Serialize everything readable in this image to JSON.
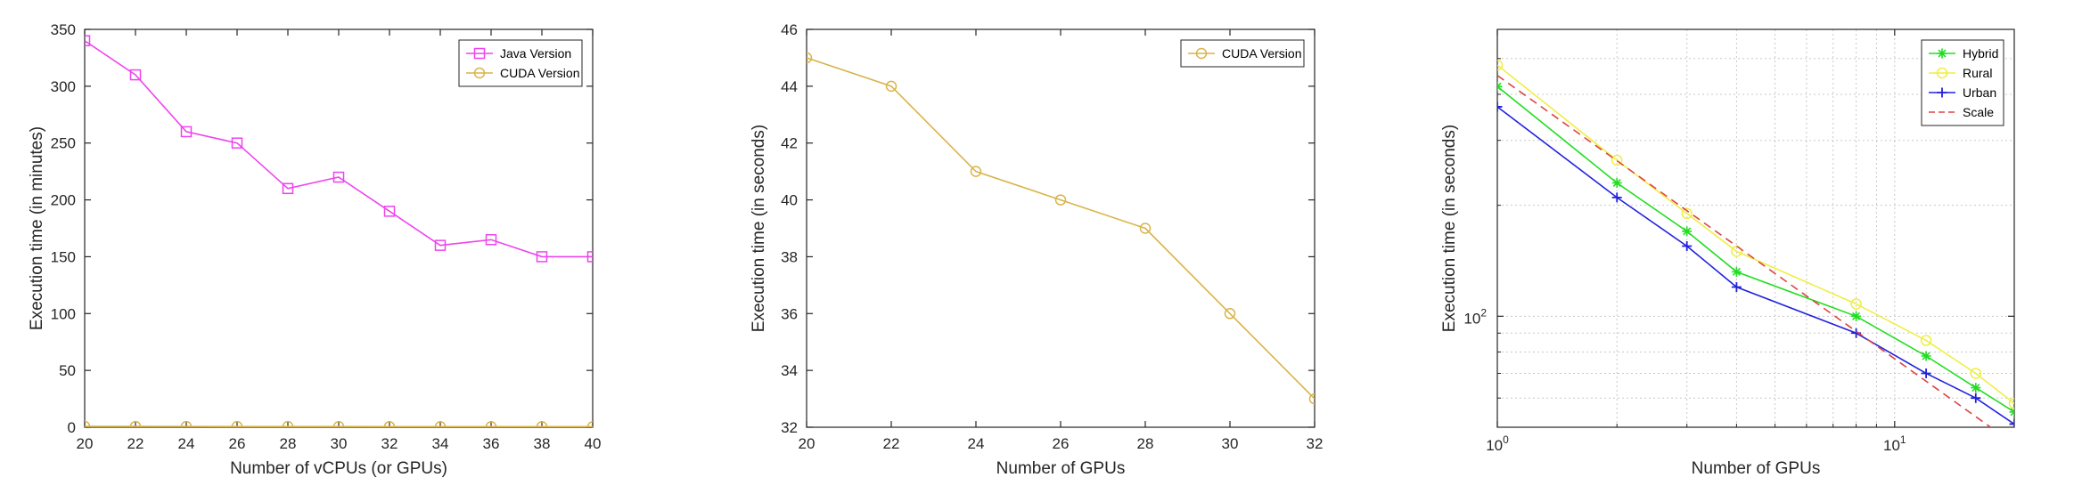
{
  "chart_data": [
    {
      "type": "line",
      "xlabel": "Number of vCPUs (or GPUs)",
      "ylabel": "Execution time (in minutes)",
      "xlim": [
        20,
        40
      ],
      "ylim": [
        0,
        350
      ],
      "x_ticks": [
        20,
        22,
        24,
        26,
        28,
        30,
        32,
        34,
        36,
        38,
        40
      ],
      "y_ticks": [
        0,
        50,
        100,
        150,
        200,
        250,
        300,
        350
      ],
      "grid": false,
      "legend_position": "top-right",
      "series": [
        {
          "name": "Java Version",
          "color": "#ee44ee",
          "marker": "square",
          "x": [
            20,
            22,
            24,
            26,
            28,
            30,
            32,
            34,
            36,
            38,
            40
          ],
          "y": [
            340,
            310,
            260,
            250,
            210,
            220,
            190,
            160,
            165,
            150,
            150
          ]
        },
        {
          "name": "CUDA Version",
          "color": "#d9b44a",
          "marker": "circle",
          "x": [
            20,
            22,
            24,
            26,
            28,
            30,
            32,
            34,
            36,
            38,
            40
          ],
          "y": [
            0.75,
            0.73,
            0.68,
            0.67,
            0.65,
            0.6,
            0.55,
            0.5,
            0.5,
            0.5,
            0.5
          ]
        }
      ]
    },
    {
      "type": "line",
      "xlabel": "Number of GPUs",
      "ylabel": "Execution time (in seconds)",
      "xlim": [
        20,
        32
      ],
      "ylim": [
        32,
        46
      ],
      "x_ticks": [
        20,
        22,
        24,
        26,
        28,
        30,
        32
      ],
      "y_ticks": [
        32,
        34,
        36,
        38,
        40,
        42,
        44,
        46
      ],
      "grid": false,
      "legend_position": "top-right",
      "series": [
        {
          "name": "CUDA Version",
          "color": "#d9b44a",
          "marker": "circle",
          "x": [
            20,
            22,
            24,
            26,
            28,
            30,
            32
          ],
          "y": [
            45,
            44,
            41,
            40,
            39,
            36,
            33
          ]
        }
      ]
    },
    {
      "type": "line",
      "xlabel": "Number of GPUs",
      "ylabel": "Execution time (in seconds)",
      "xscale": "log",
      "yscale": "log",
      "xlim": [
        1,
        20
      ],
      "ylim": [
        50,
        600
      ],
      "x_ticks": [
        1,
        10
      ],
      "x_tick_labels": [
        "10^0",
        "10^1"
      ],
      "y_ticks": [
        100
      ],
      "y_tick_labels": [
        "10^2"
      ],
      "grid": true,
      "legend_position": "top-right",
      "series": [
        {
          "name": "Hybrid",
          "color": "#22dd22",
          "marker": "asterisk",
          "x": [
            1,
            2,
            3,
            4,
            8,
            12,
            16,
            20
          ],
          "y": [
            420,
            230,
            170,
            132,
            100,
            78,
            64,
            55
          ]
        },
        {
          "name": "Rural",
          "color": "#eeee44",
          "marker": "circle",
          "x": [
            1,
            2,
            3,
            4,
            8,
            12,
            16,
            20
          ],
          "y": [
            480,
            265,
            190,
            150,
            108,
            86,
            70,
            58
          ]
        },
        {
          "name": "Urban",
          "color": "#2222dd",
          "marker": "plus",
          "x": [
            1,
            2,
            3,
            4,
            8,
            12,
            16,
            20
          ],
          "y": [
            370,
            210,
            155,
            120,
            90,
            70,
            60,
            51
          ]
        },
        {
          "name": "Scale",
          "color": "#dd4444",
          "dash": true,
          "marker": "none",
          "x": [
            1,
            20
          ],
          "y": [
            450,
            45
          ]
        }
      ]
    }
  ]
}
